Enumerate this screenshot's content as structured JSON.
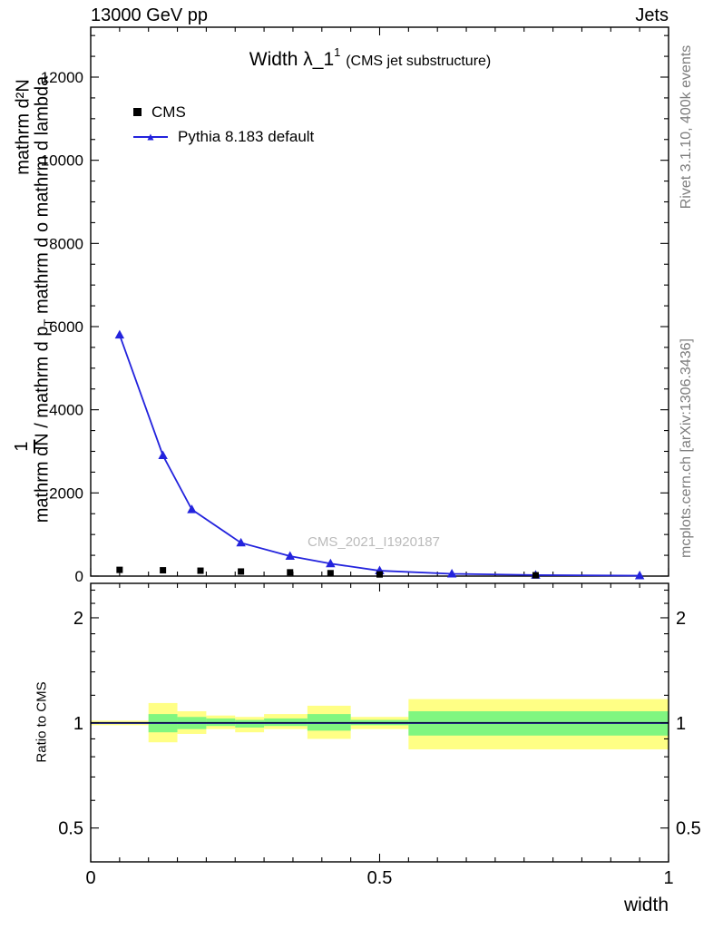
{
  "header": {
    "left": "13000 GeV pp",
    "right": "Jets"
  },
  "side_labels": {
    "rivet": "Rivet 3.1.10,  400k events",
    "mcplots": "mcplots.cern.ch [arXiv:1306.3436]"
  },
  "y_axis_label": {
    "part1": "mathrm d²N",
    "part2": "1",
    "part3a": "mathrm dN / mathrm d p",
    "part3b": "T",
    "part3c": " mathrm d o mathrm d lambda"
  },
  "title": {
    "main": "Width λ_1",
    "sup": "1",
    "paren": "(CMS jet substructure)"
  },
  "legend": [
    {
      "label": "CMS",
      "marker": "square",
      "color": "#000000"
    },
    {
      "label": "Pythia 8.183 default",
      "marker": "line-triangle",
      "color": "#2323dd"
    }
  ],
  "watermark": "CMS_2021_I1920187",
  "ratio_panel": {
    "ylabel": "Ratio to CMS"
  },
  "xaxis": {
    "label": "width",
    "tick_labels": [
      "0",
      "0.5",
      "1"
    ],
    "tick_values": [
      0,
      0.5,
      1
    ]
  },
  "colors": {
    "band_yellow": "#ffff85",
    "band_green": "#80f680",
    "pythia_blue": "#2323dd",
    "watermark_gray": "#bbbbbb",
    "side_gray": "#7d7d7d"
  },
  "chart_data": [
    {
      "type": "line",
      "title": "Width λ_1^1 (CMS jet substructure)",
      "xlabel": "width",
      "ylabel": "1/dN/dp_T d2N/dp d(lambda) [garbled: mathrm dN / mathrm d p mathrm d o mathrm d lambda]",
      "xlim": [
        0,
        1
      ],
      "ylim": [
        0,
        13200
      ],
      "yticks": [
        0,
        2000,
        4000,
        6000,
        8000,
        10000,
        12000
      ],
      "ytick_minor_step": 500,
      "xticks": [
        0,
        0.5,
        1
      ],
      "xtick_minor_step": 0.05,
      "legend_position": "upper-left-inside",
      "grid": false,
      "series": [
        {
          "name": "CMS",
          "marker": "square",
          "color": "#000000",
          "x": [
            0.05,
            0.125,
            0.19,
            0.26,
            0.345,
            0.415,
            0.5,
            0.77
          ],
          "y": [
            150,
            140,
            130,
            110,
            90,
            70,
            40,
            20
          ]
        },
        {
          "name": "Pythia 8.183 default",
          "marker": "triangle",
          "color": "#2323dd",
          "line": true,
          "x": [
            0.05,
            0.125,
            0.175,
            0.26,
            0.345,
            0.415,
            0.5,
            0.625,
            0.77,
            0.95
          ],
          "y": [
            5800,
            2900,
            1600,
            800,
            480,
            300,
            130,
            55,
            25,
            10
          ]
        }
      ]
    },
    {
      "type": "ratio",
      "ylabel": "Ratio to CMS",
      "yscale": "log",
      "ylim": [
        0.4,
        2.51
      ],
      "yticks": [
        0.5,
        1,
        2
      ],
      "ytick_minors": [
        0.6,
        0.7,
        0.8,
        0.9,
        1.2,
        1.4,
        1.6,
        1.8,
        2.2,
        2.4
      ],
      "reference_line": 1.0,
      "model_line": {
        "color": "#2323dd",
        "value": 1.0
      },
      "bands": [
        {
          "x0": 0.0,
          "x1": 0.1,
          "yellow": [
            0.985,
            1.015
          ],
          "green": [
            0.995,
            1.005
          ]
        },
        {
          "x0": 0.1,
          "x1": 0.15,
          "yellow": [
            0.88,
            1.14
          ],
          "green": [
            0.94,
            1.06
          ]
        },
        {
          "x0": 0.15,
          "x1": 0.2,
          "yellow": [
            0.93,
            1.08
          ],
          "green": [
            0.96,
            1.04
          ]
        },
        {
          "x0": 0.2,
          "x1": 0.25,
          "yellow": [
            0.96,
            1.05
          ],
          "green": [
            0.98,
            1.03
          ]
        },
        {
          "x0": 0.25,
          "x1": 0.3,
          "yellow": [
            0.94,
            1.04
          ],
          "green": [
            0.97,
            1.02
          ]
        },
        {
          "x0": 0.3,
          "x1": 0.375,
          "yellow": [
            0.96,
            1.06
          ],
          "green": [
            0.98,
            1.03
          ]
        },
        {
          "x0": 0.375,
          "x1": 0.45,
          "yellow": [
            0.9,
            1.12
          ],
          "green": [
            0.95,
            1.06
          ]
        },
        {
          "x0": 0.45,
          "x1": 0.55,
          "yellow": [
            0.96,
            1.04
          ],
          "green": [
            0.985,
            1.02
          ]
        },
        {
          "x0": 0.55,
          "x1": 1.0,
          "yellow": [
            0.84,
            1.17
          ],
          "green": [
            0.92,
            1.08
          ]
        }
      ]
    }
  ]
}
